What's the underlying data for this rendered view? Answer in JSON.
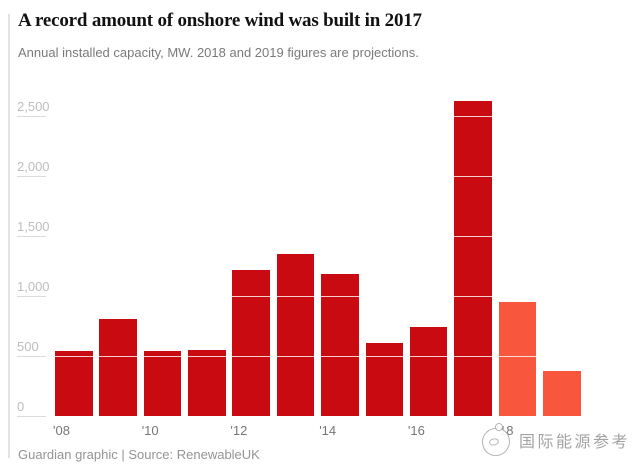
{
  "header": {
    "title": "A record amount of onshore wind was built in 2017",
    "subtitle": "Annual installed capacity, MW. 2018 and 2019 figures are projections."
  },
  "chart_data": {
    "type": "bar",
    "title": "A record amount of onshore wind was built in 2017",
    "subtitle": "Annual installed capacity, MW. 2018 and 2019 figures are projections.",
    "unit": "MW",
    "categories": [
      "2008",
      "2009",
      "2010",
      "2011",
      "2012",
      "2013",
      "2014",
      "2015",
      "2016",
      "2017",
      "2018",
      "2019"
    ],
    "values": [
      540,
      810,
      540,
      550,
      1220,
      1350,
      1180,
      610,
      740,
      2625,
      950,
      375
    ],
    "projection_years": [
      "2018",
      "2019"
    ],
    "ylim": [
      0,
      2700
    ],
    "grid": "horizontal gridlines, white where crossing bars, short gray ticks at labels",
    "legend_position": "none",
    "y_ticks": [
      {
        "value": 0,
        "label": "0"
      },
      {
        "value": 500,
        "label": "500"
      },
      {
        "value": 1000,
        "label": "1,000"
      },
      {
        "value": 1500,
        "label": "1,500"
      },
      {
        "value": 2000,
        "label": "2,000"
      },
      {
        "value": 2500,
        "label": "2,500"
      }
    ],
    "x_ticks": [
      {
        "bar_index": 0,
        "label": "'08"
      },
      {
        "bar_index": 2,
        "label": "'10"
      },
      {
        "bar_index": 4,
        "label": "'12"
      },
      {
        "bar_index": 6,
        "label": "'14"
      },
      {
        "bar_index": 8,
        "label": "'16"
      },
      {
        "bar_index": 10,
        "label": "'18"
      }
    ],
    "colors": {
      "actual": "#c90b11",
      "projection": "#f9573d"
    }
  },
  "footer": {
    "credit": "Guardian graphic | Source: RenewableUK"
  },
  "watermark": {
    "text": "国际能源参考",
    "logo": "sketch-mascot-logo"
  }
}
